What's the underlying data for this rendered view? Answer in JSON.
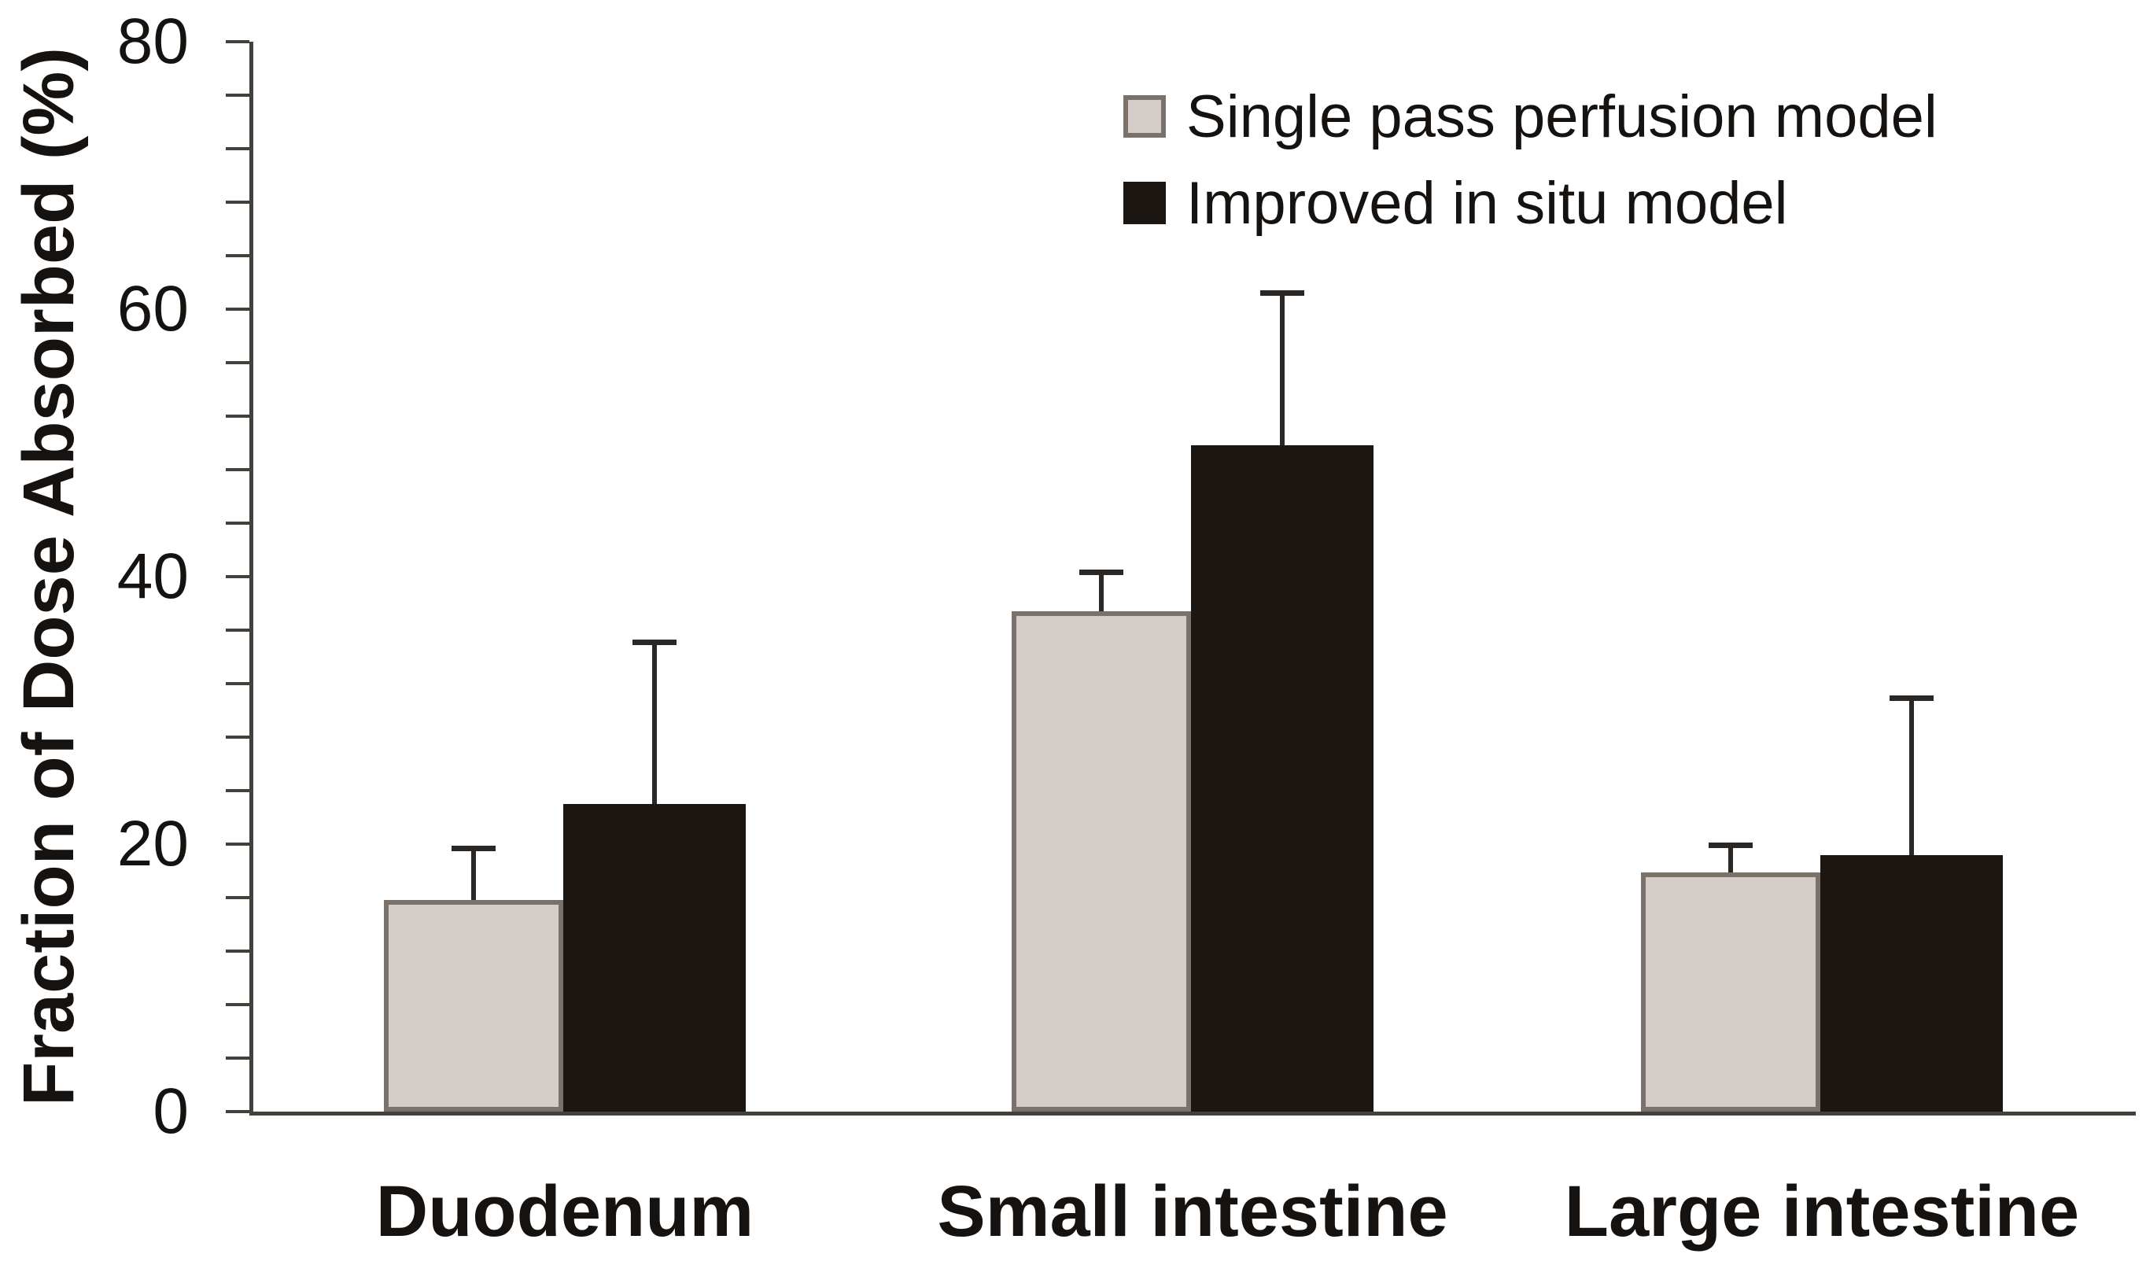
{
  "chart_data": {
    "type": "bar",
    "title": "",
    "xlabel": "",
    "ylabel": "Fraction of Dose Absorbed (%)",
    "ylim": [
      0,
      80
    ],
    "y_major_ticks": [
      0,
      20,
      40,
      60,
      80
    ],
    "y_minor_tick_step": 4,
    "grid": false,
    "legend_position": "top-right-inside",
    "error_bar_direction": "plus-only",
    "categories": [
      "Duodenum",
      "Small intestine",
      "Large intestine"
    ],
    "series": [
      {
        "name": "Single pass perfusion model",
        "values": [
          15.8,
          37.4,
          17.9
        ],
        "errors_plus": [
          3.9,
          2.9,
          2.0
        ],
        "fill": "#d3ccc8",
        "border": "#7a716b"
      },
      {
        "name": "Improved in situ model",
        "values": [
          23.0,
          49.8,
          19.2
        ],
        "errors_plus": [
          12.1,
          11.4,
          11.7
        ],
        "fill": "#1b1612",
        "border": "#1b1612"
      }
    ],
    "colors": {
      "axis": "#44403c",
      "error_bar": "#2b2724",
      "text": "#151210"
    }
  }
}
